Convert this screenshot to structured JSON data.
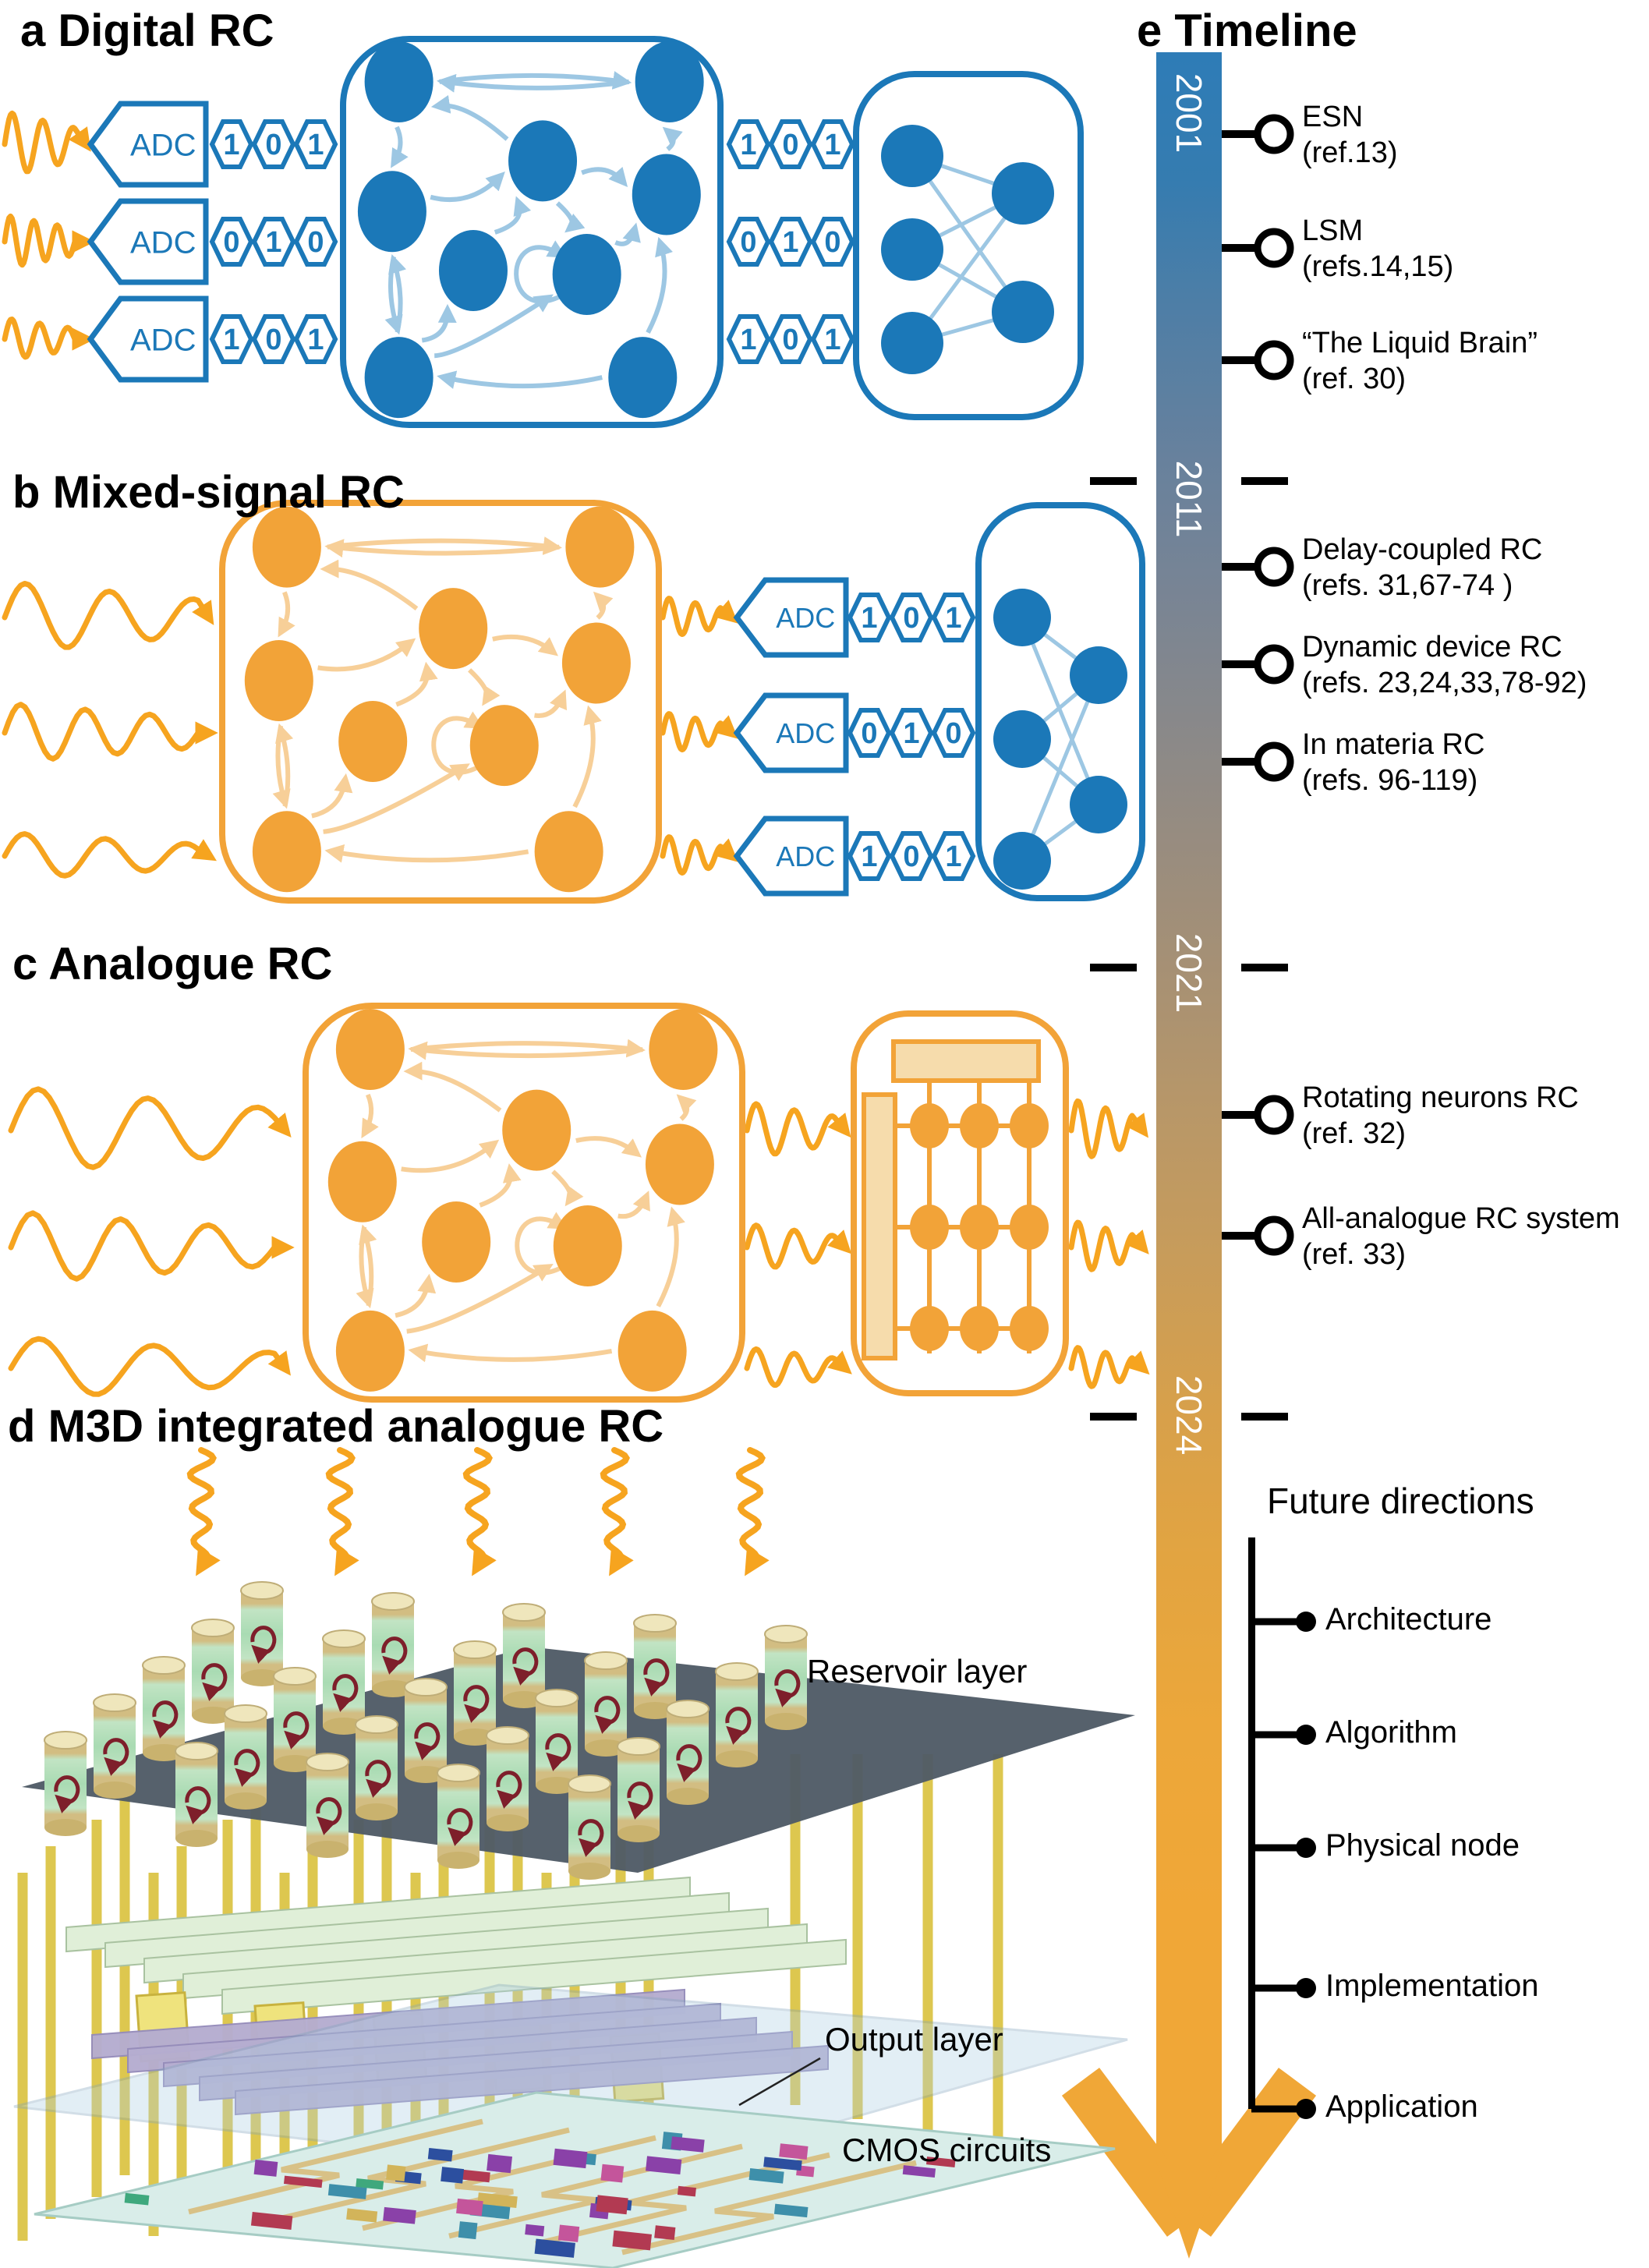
{
  "panels": {
    "a": {
      "label": "a",
      "title": "Digital RC",
      "adc_label": "ADC",
      "bits_in": [
        [
          "1",
          "0",
          "1"
        ],
        [
          "0",
          "1",
          "0"
        ],
        [
          "1",
          "0",
          "1"
        ]
      ],
      "bits_out": [
        [
          "1",
          "0",
          "1"
        ],
        [
          "0",
          "1",
          "0"
        ],
        [
          "1",
          "0",
          "1"
        ]
      ]
    },
    "b": {
      "label": "b",
      "title": "Mixed-signal RC",
      "adc_label": "ADC",
      "bits": [
        [
          "1",
          "0",
          "1"
        ],
        [
          "0",
          "1",
          "0"
        ],
        [
          "1",
          "0",
          "1"
        ]
      ]
    },
    "c": {
      "label": "c",
      "title": "Analogue RC"
    },
    "d": {
      "label": "d",
      "title": "M3D integrated analogue RC",
      "layer_labels": [
        "Reservoir layer",
        "Output layer",
        "CMOS circuits"
      ]
    }
  },
  "timeline": {
    "label": "e",
    "title": "Timeline",
    "years": [
      "2001",
      "2011",
      "2021",
      "2024"
    ],
    "milestones": [
      {
        "name": "ESN",
        "ref": "(ref.13)"
      },
      {
        "name": "LSM",
        "ref": "(refs.14,15)"
      },
      {
        "name": "“The Liquid Brain”",
        "ref": "(ref. 30)"
      },
      {
        "name": "Delay-coupled RC",
        "ref": "(refs. 31,67-74 )"
      },
      {
        "name": "Dynamic device RC",
        "ref": "(refs. 23,24,33,78-92)"
      },
      {
        "name": "In materia RC",
        "ref": "(refs. 96-119)"
      },
      {
        "name": "Rotating neurons RC",
        "ref": "(ref. 32)"
      },
      {
        "name": "All-analogue RC system",
        "ref": "(ref. 33)"
      }
    ],
    "future": {
      "title": "Future directions",
      "items": [
        "Architecture",
        "Algorithm",
        "Physical node",
        "Implementation",
        "Application"
      ]
    }
  },
  "colors": {
    "blue": "#1B78B8",
    "light_blue": "#9DC7E3",
    "orange": "#F2A338",
    "wave_orange": "#F6A41F",
    "light_orange": "#F7CF98",
    "pale_orange": "#F6DCAC",
    "timeline_top": "#2E7CB7",
    "timeline_bottom": "#F0A737",
    "black": "#000000"
  }
}
